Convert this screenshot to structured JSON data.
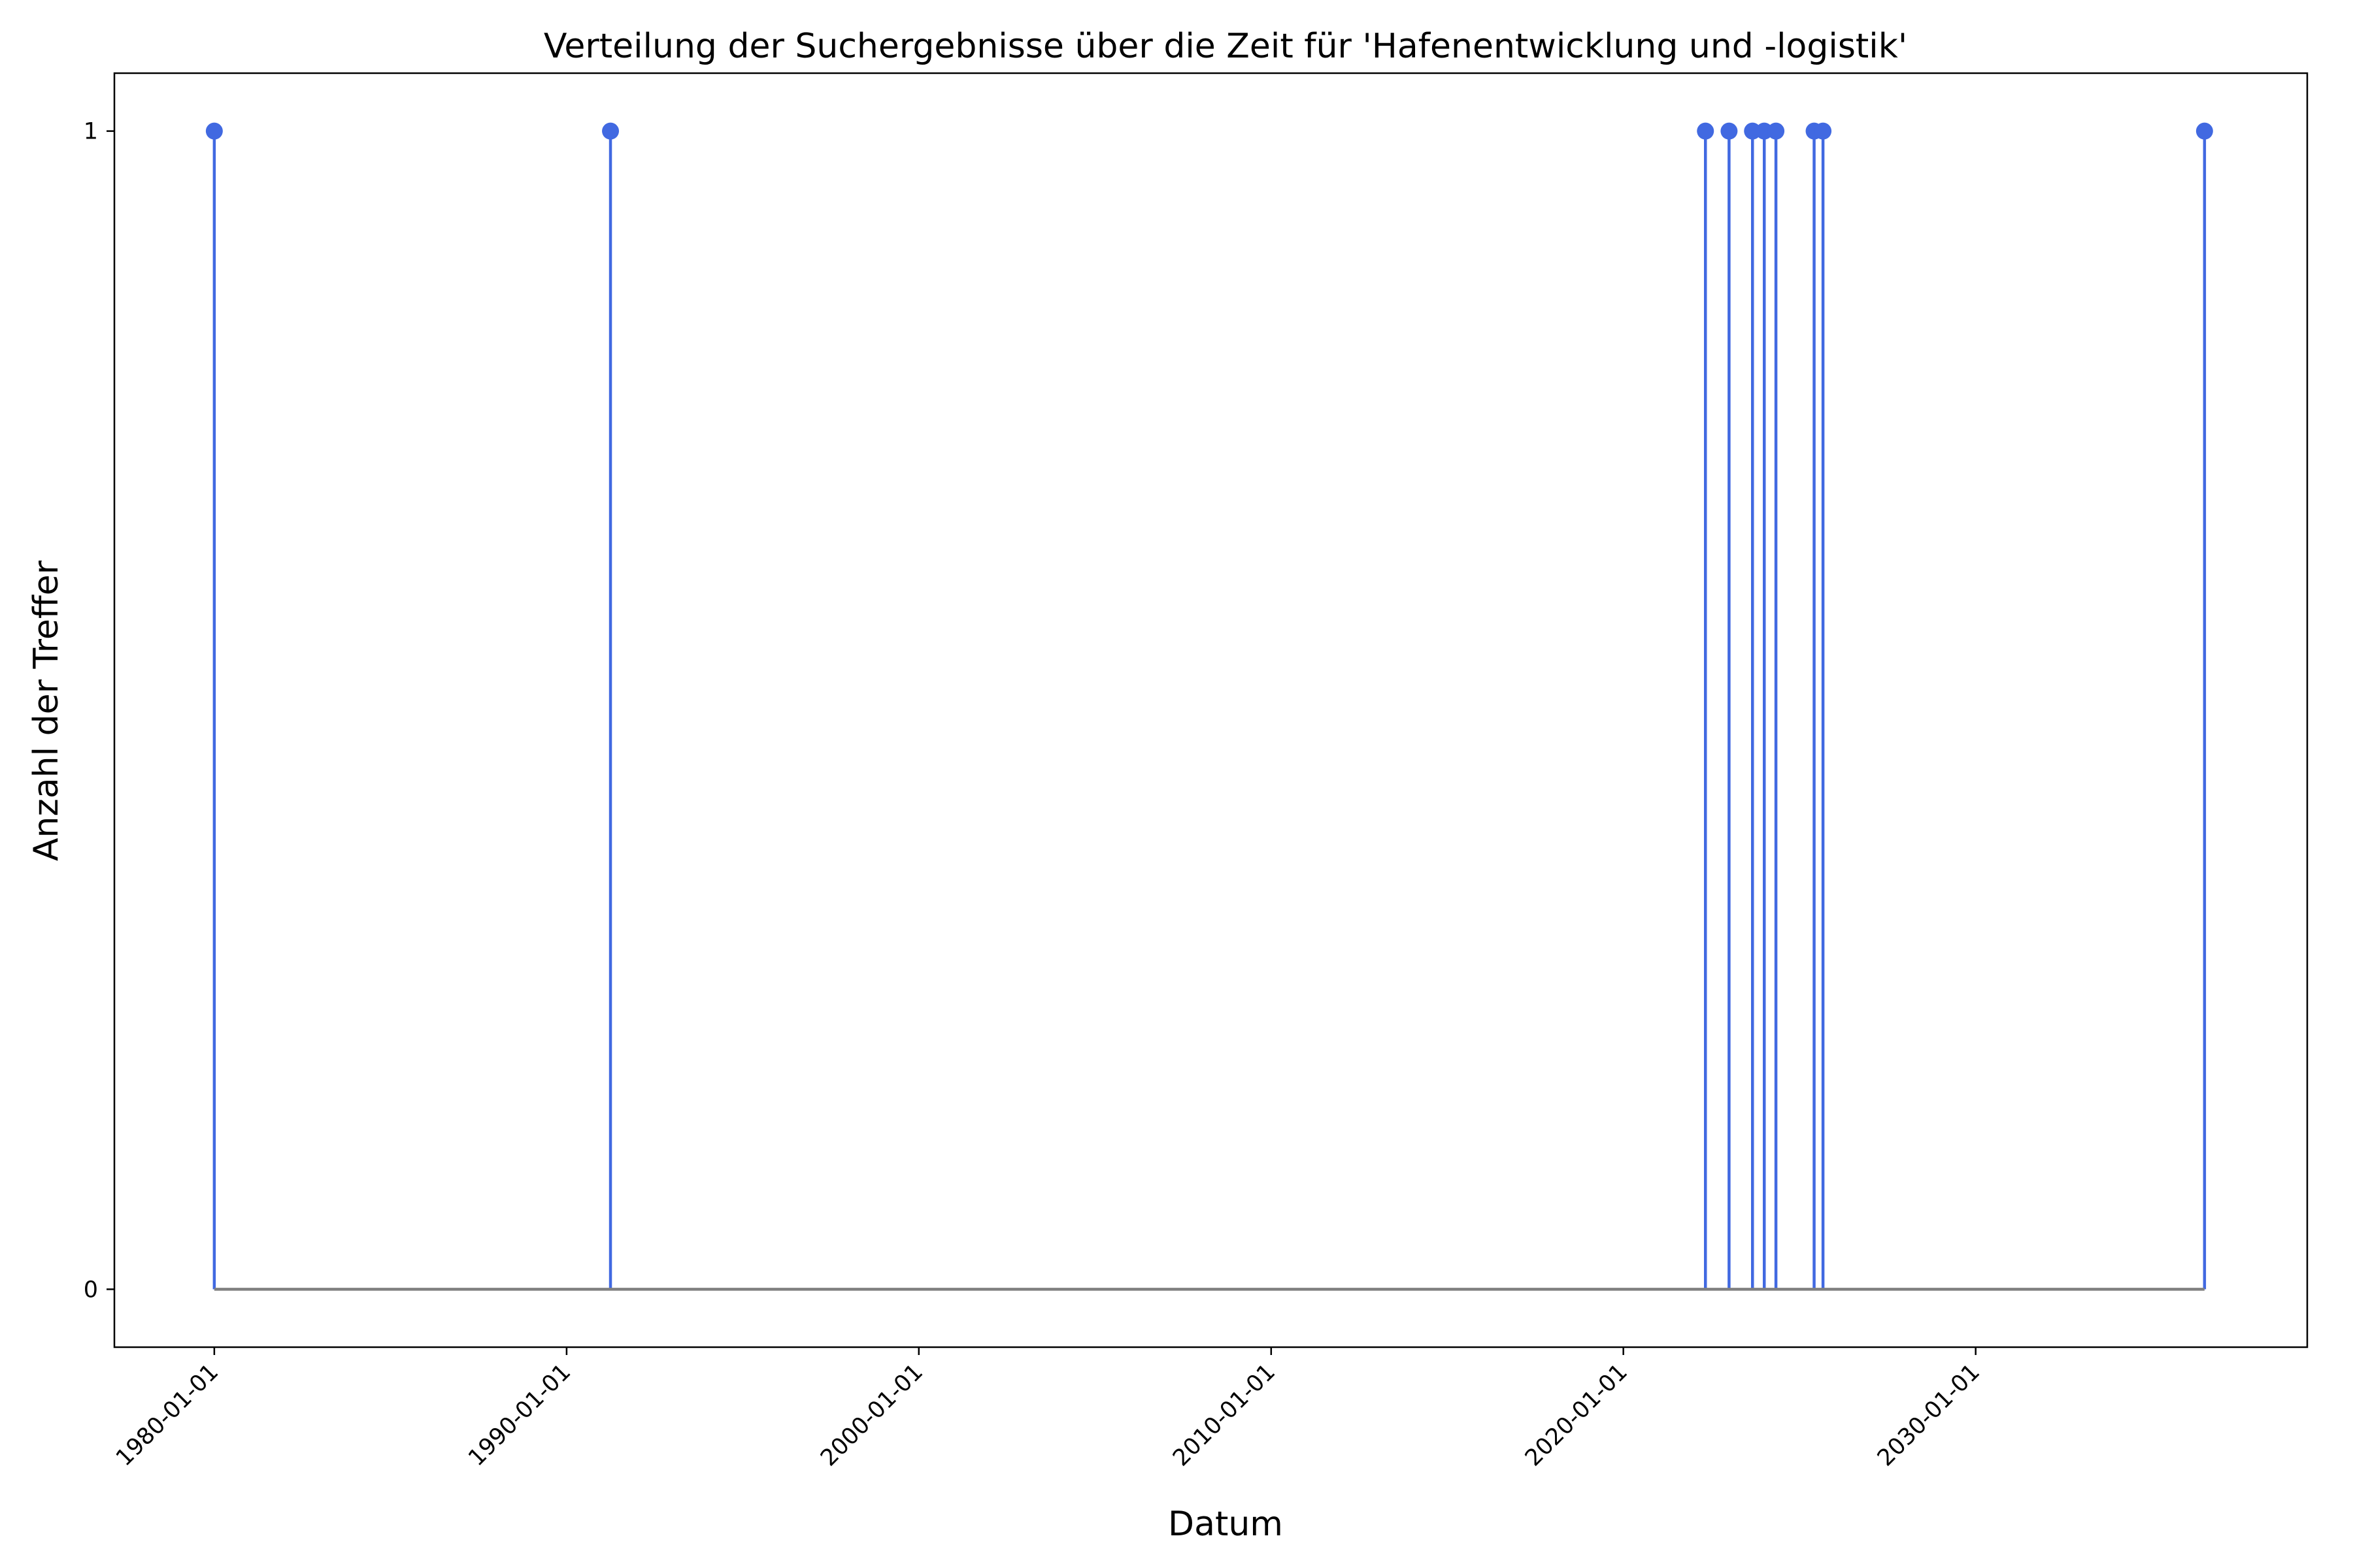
{
  "chart_data": {
    "type": "stem",
    "title": "Verteilung der Suchergebnisse über die Zeit für 'Hafenentwicklung und -logistik'",
    "xlabel": "Datum",
    "ylabel": "Anzahl der Treffer",
    "x_axis_type": "date",
    "xlim": [
      "1977-03-01",
      "2039-06-01"
    ],
    "ylim": [
      -0.05,
      1.05
    ],
    "x_ticks": [
      "1980-01-01",
      "1990-01-01",
      "2000-01-01",
      "2010-01-01",
      "2020-01-01",
      "2030-01-01"
    ],
    "y_ticks": [
      0,
      1
    ],
    "baseline": 0,
    "grid": false,
    "legend": null,
    "colors": {
      "stem": "#4169e1",
      "baseline": "#808080"
    },
    "points": [
      {
        "x": "1980-01-01",
        "y": 1
      },
      {
        "x": "1991-04-01",
        "y": 1
      },
      {
        "x": "2022-05-01",
        "y": 1
      },
      {
        "x": "2023-01-01",
        "y": 1
      },
      {
        "x": "2023-09-01",
        "y": 1
      },
      {
        "x": "2024-01-01",
        "y": 1
      },
      {
        "x": "2024-05-01",
        "y": 1
      },
      {
        "x": "2025-06-01",
        "y": 1
      },
      {
        "x": "2025-09-01",
        "y": 1
      },
      {
        "x": "2036-07-01",
        "y": 1
      }
    ]
  }
}
